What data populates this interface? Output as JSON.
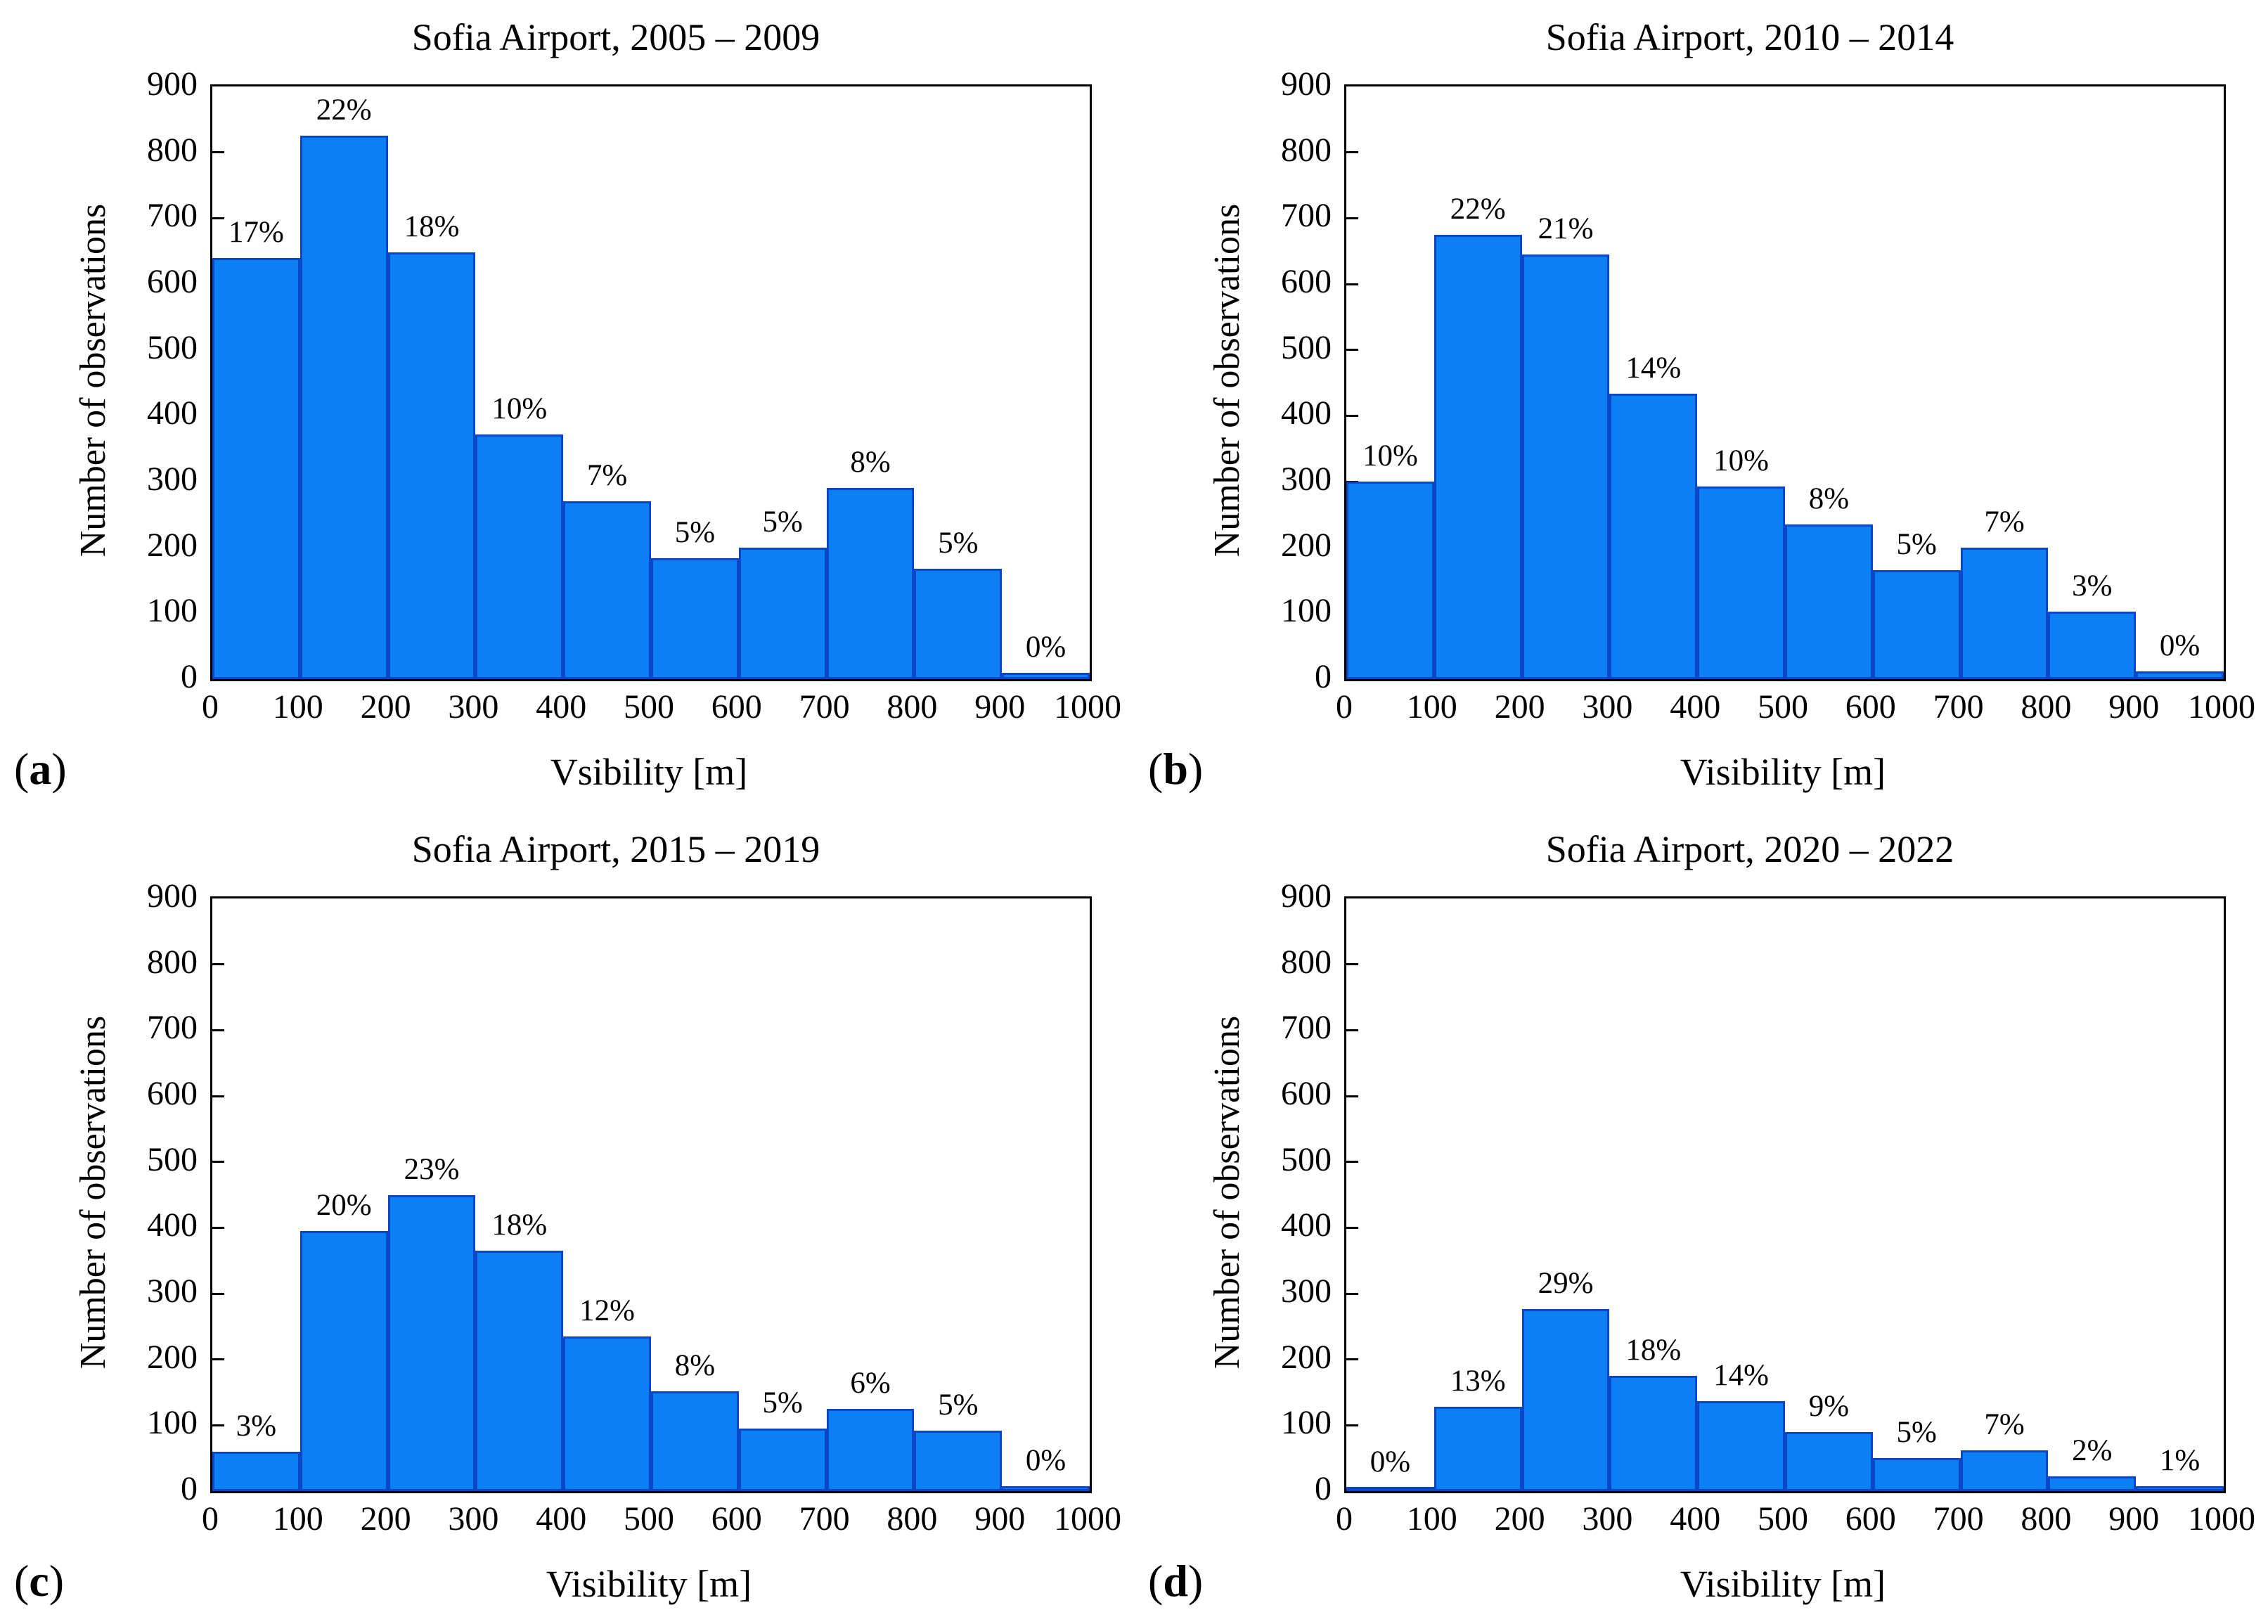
{
  "chart_data": [
    {
      "type": "bar",
      "panel_label": {
        "open": "(",
        "letter": "a",
        "close": ")"
      },
      "title": "Sofia Airport, 2005 – 2009",
      "xlabel": "Vsibility [m]",
      "ylabel": "Number of observations",
      "bin_edges": [
        0,
        100,
        200,
        300,
        400,
        500,
        600,
        700,
        800,
        900,
        1000
      ],
      "bin_width": 100,
      "values": [
        640,
        825,
        648,
        372,
        270,
        184,
        200,
        290,
        168,
        10
      ],
      "percent_labels": [
        "17%",
        "22%",
        "18%",
        "10%",
        "7%",
        "5%",
        "5%",
        "8%",
        "5%",
        "0%"
      ],
      "percents": [
        17,
        22,
        18,
        10,
        7,
        5,
        5,
        8,
        5,
        0
      ],
      "xlim": [
        0,
        1000
      ],
      "ylim": [
        0,
        900
      ],
      "xticks": [
        0,
        100,
        200,
        300,
        400,
        500,
        600,
        700,
        800,
        900,
        1000
      ],
      "yticks": [
        0,
        100,
        200,
        300,
        400,
        500,
        600,
        700,
        800,
        900
      ],
      "grid": false,
      "bar_color": "#0b80f5",
      "bar_edge_color": "#0a46c8",
      "frame_color": "#000000"
    },
    {
      "type": "bar",
      "panel_label": {
        "open": "(",
        "letter": "b",
        "close": ")"
      },
      "title": "Sofia Airport, 2010 – 2014",
      "xlabel": "Visibility [m]",
      "ylabel": "Number of observations",
      "bin_edges": [
        0,
        100,
        200,
        300,
        400,
        500,
        600,
        700,
        800,
        900,
        1000
      ],
      "bin_width": 100,
      "values": [
        300,
        675,
        645,
        433,
        293,
        235,
        165,
        200,
        103,
        12
      ],
      "percent_labels": [
        "10%",
        "22%",
        "21%",
        "14%",
        "10%",
        "8%",
        "5%",
        "7%",
        "3%",
        "0%"
      ],
      "percents": [
        10,
        22,
        21,
        14,
        10,
        8,
        5,
        7,
        3,
        0
      ],
      "xlim": [
        0,
        1000
      ],
      "ylim": [
        0,
        900
      ],
      "xticks": [
        0,
        100,
        200,
        300,
        400,
        500,
        600,
        700,
        800,
        900,
        1000
      ],
      "yticks": [
        0,
        100,
        200,
        300,
        400,
        500,
        600,
        700,
        800,
        900
      ],
      "grid": false,
      "bar_color": "#0b80f5",
      "bar_edge_color": "#0a46c8",
      "frame_color": "#000000"
    },
    {
      "type": "bar",
      "panel_label": {
        "open": "(",
        "letter": "c",
        "close": ")"
      },
      "title": "Sofia Airport, 2015 – 2019",
      "xlabel": "Visibility [m]",
      "ylabel": "Number of observations",
      "bin_edges": [
        0,
        100,
        200,
        300,
        400,
        500,
        600,
        700,
        800,
        900,
        1000
      ],
      "bin_width": 100,
      "values": [
        60,
        395,
        450,
        365,
        235,
        152,
        95,
        125,
        92,
        8
      ],
      "percent_labels": [
        "3%",
        "20%",
        "23%",
        "18%",
        "12%",
        "8%",
        "5%",
        "6%",
        "5%",
        "0%"
      ],
      "percents": [
        3,
        20,
        23,
        18,
        12,
        8,
        5,
        6,
        5,
        0
      ],
      "xlim": [
        0,
        1000
      ],
      "ylim": [
        0,
        900
      ],
      "xticks": [
        0,
        100,
        200,
        300,
        400,
        500,
        600,
        700,
        800,
        900,
        1000
      ],
      "yticks": [
        0,
        100,
        200,
        300,
        400,
        500,
        600,
        700,
        800,
        900
      ],
      "grid": false,
      "bar_color": "#0b80f5",
      "bar_edge_color": "#0a46c8",
      "frame_color": "#000000"
    },
    {
      "type": "bar",
      "panel_label": {
        "open": "(",
        "letter": "d",
        "close": ")"
      },
      "title": "Sofia Airport, 2020 – 2022",
      "xlabel": "Visibility [m]",
      "ylabel": "Number of observations",
      "bin_edges": [
        0,
        100,
        200,
        300,
        400,
        500,
        600,
        700,
        800,
        900,
        1000
      ],
      "bin_width": 100,
      "values": [
        5,
        128,
        277,
        175,
        137,
        90,
        50,
        62,
        22,
        8
      ],
      "percent_labels": [
        "0%",
        "13%",
        "29%",
        "18%",
        "14%",
        "9%",
        "5%",
        "7%",
        "2%",
        "1%"
      ],
      "percents": [
        0,
        13,
        29,
        18,
        14,
        9,
        5,
        7,
        2,
        1
      ],
      "xlim": [
        0,
        1000
      ],
      "ylim": [
        0,
        900
      ],
      "xticks": [
        0,
        100,
        200,
        300,
        400,
        500,
        600,
        700,
        800,
        900,
        1000
      ],
      "yticks": [
        0,
        100,
        200,
        300,
        400,
        500,
        600,
        700,
        800,
        900
      ],
      "grid": false,
      "bar_color": "#0b80f5",
      "bar_edge_color": "#0a46c8",
      "frame_color": "#000000"
    }
  ]
}
